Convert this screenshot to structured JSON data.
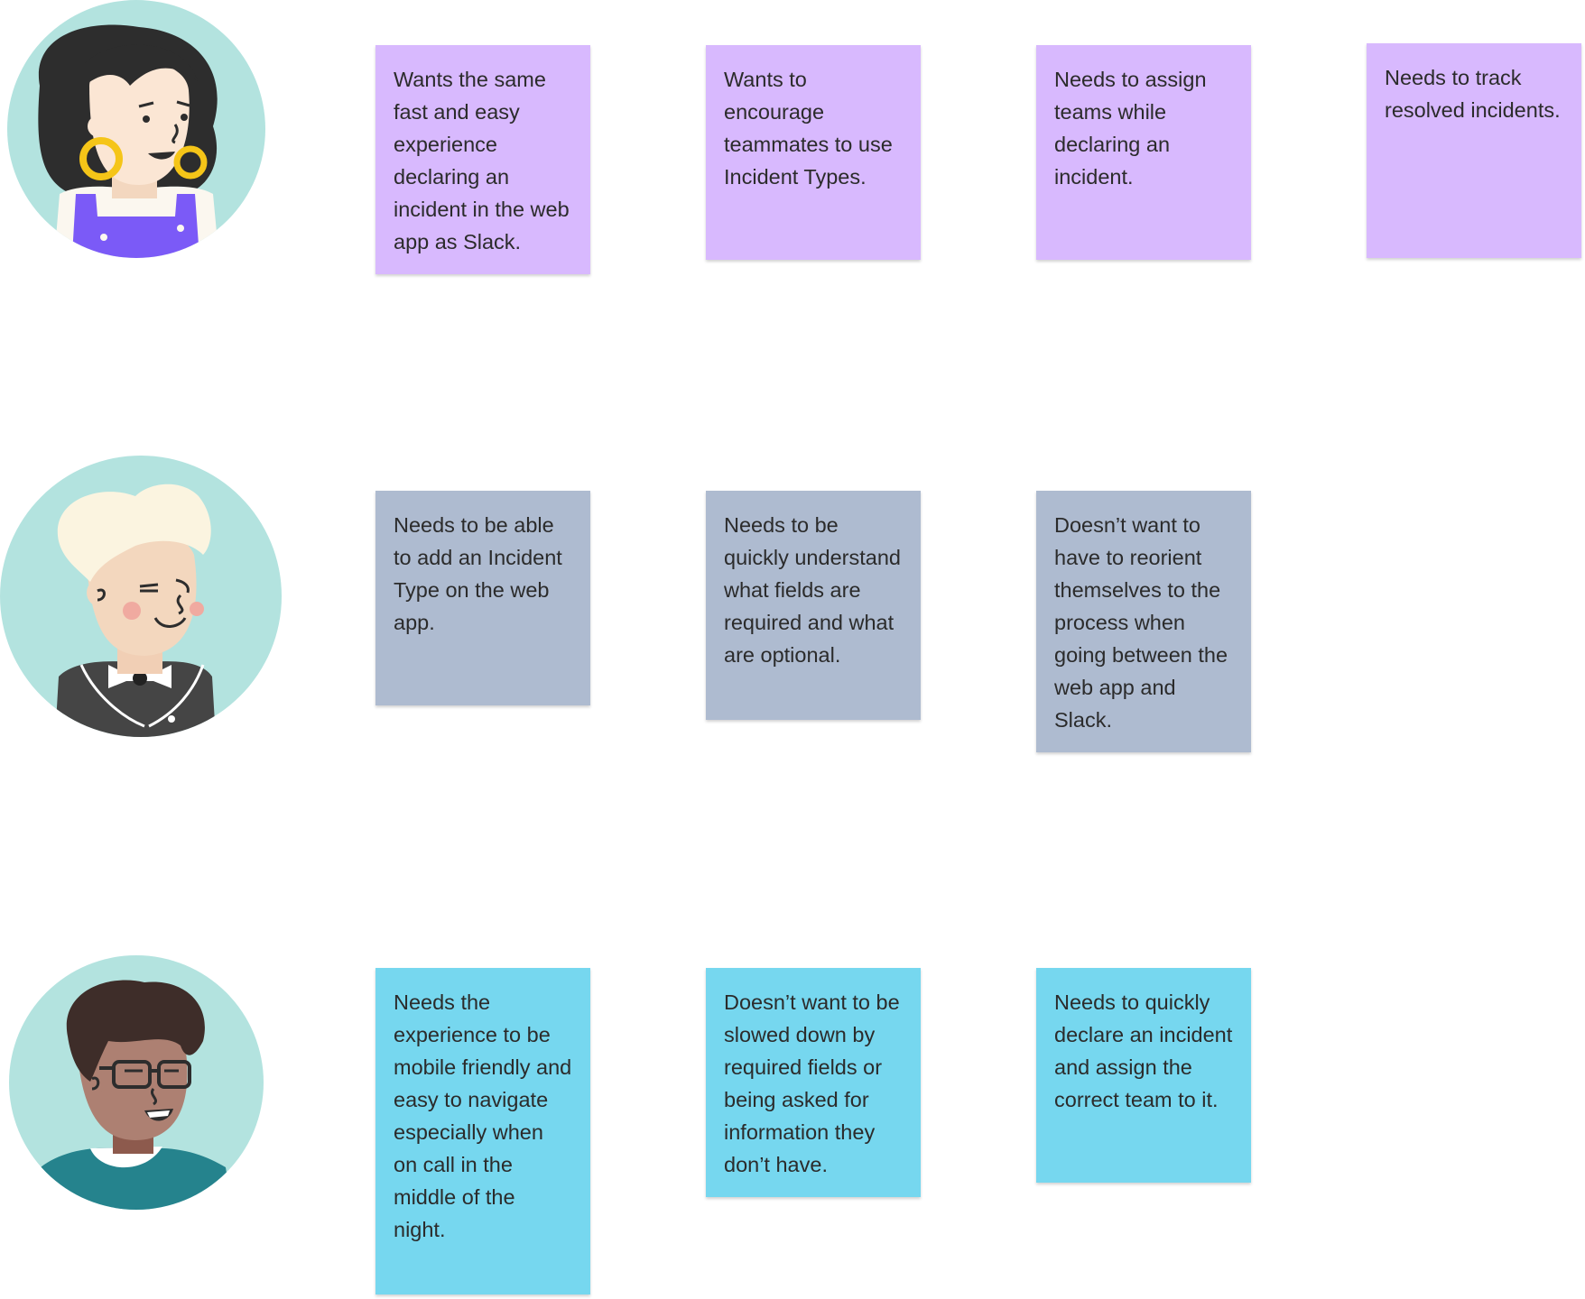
{
  "personas": [
    {
      "avatar_icon": "woman-with-hoop-earrings-avatar-icon",
      "color": "#d8b9fe",
      "notes": [
        "Wants the same fast and easy experience declaring an incident in the web app as Slack.",
        "Wants to encourage teammates to use Incident Types.",
        "Needs to assign teams while declaring an incident.",
        "Needs to track resolved incidents."
      ]
    },
    {
      "avatar_icon": "blond-person-with-bowtie-avatar-icon",
      "color": "#aebbd0",
      "notes": [
        "Needs to be able to add an Incident Type on the web app.",
        "Needs to be quickly understand what fields are required and what are optional.",
        "Doesn’t want to have to reorient themselves to the process when going between the web app and Slack."
      ]
    },
    {
      "avatar_icon": "person-with-glasses-avatar-icon",
      "color": "#76d7ef",
      "notes": [
        "Needs the experience to be mobile friendly and easy to navigate especially when on call in the middle of the night.",
        "Doesn’t want to be slowed down by required fields or being asked for information they don’t have.",
        "Needs to quickly declare an incident and assign the correct team to it."
      ]
    }
  ]
}
